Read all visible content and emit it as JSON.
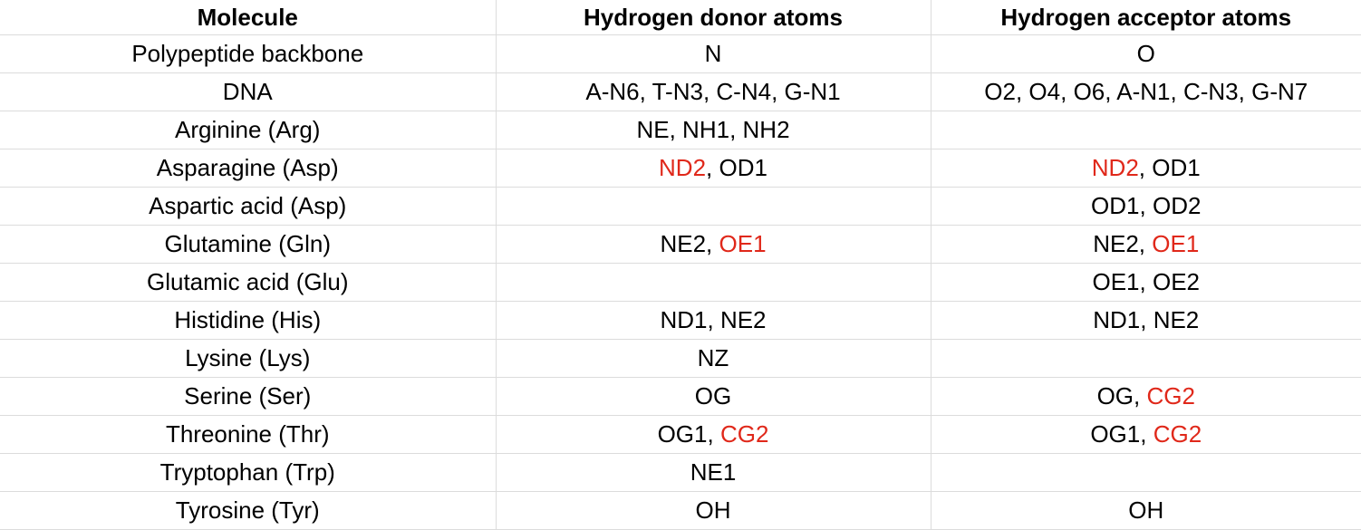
{
  "table": {
    "headers": [
      "Molecule",
      "Hydrogen donor atoms",
      "Hydrogen acceptor atoms"
    ],
    "highlight_color": "#e0281a",
    "rows": [
      {
        "molecule": "Polypeptide backbone",
        "donors": [
          {
            "text": "N",
            "hl": false
          }
        ],
        "acceptors": [
          {
            "text": "O",
            "hl": false
          }
        ]
      },
      {
        "molecule": "DNA",
        "donors": [
          {
            "text": "A-N6",
            "hl": false
          },
          {
            "text": "T-N3",
            "hl": false
          },
          {
            "text": "C-N4",
            "hl": false
          },
          {
            "text": "G-N1",
            "hl": false
          }
        ],
        "acceptors": [
          {
            "text": "O2",
            "hl": false
          },
          {
            "text": "O4",
            "hl": false
          },
          {
            "text": "O6",
            "hl": false
          },
          {
            "text": "A-N1",
            "hl": false
          },
          {
            "text": "C-N3",
            "hl": false
          },
          {
            "text": "G-N7",
            "hl": false
          }
        ]
      },
      {
        "molecule": "Arginine (Arg)",
        "donors": [
          {
            "text": "NE",
            "hl": false
          },
          {
            "text": "NH1",
            "hl": false
          },
          {
            "text": "NH2",
            "hl": false
          }
        ],
        "acceptors": []
      },
      {
        "molecule": "Asparagine (Asp)",
        "donors": [
          {
            "text": "ND2",
            "hl": true
          },
          {
            "text": "OD1",
            "hl": false
          }
        ],
        "acceptors": [
          {
            "text": "ND2",
            "hl": true
          },
          {
            "text": "OD1",
            "hl": false
          }
        ]
      },
      {
        "molecule": "Aspartic acid (Asp)",
        "donors": [],
        "acceptors": [
          {
            "text": "OD1",
            "hl": false
          },
          {
            "text": "OD2",
            "hl": false
          }
        ]
      },
      {
        "molecule": "Glutamine (Gln)",
        "donors": [
          {
            "text": "NE2",
            "hl": false
          },
          {
            "text": "OE1",
            "hl": true
          }
        ],
        "acceptors": [
          {
            "text": "NE2",
            "hl": false
          },
          {
            "text": "OE1",
            "hl": true
          }
        ]
      },
      {
        "molecule": "Glutamic acid (Glu)",
        "donors": [],
        "acceptors": [
          {
            "text": "OE1",
            "hl": false
          },
          {
            "text": "OE2",
            "hl": false
          }
        ]
      },
      {
        "molecule": "Histidine (His)",
        "donors": [
          {
            "text": "ND1",
            "hl": false
          },
          {
            "text": "NE2",
            "hl": false
          }
        ],
        "acceptors": [
          {
            "text": "ND1",
            "hl": false
          },
          {
            "text": "NE2",
            "hl": false
          }
        ]
      },
      {
        "molecule": "Lysine (Lys)",
        "donors": [
          {
            "text": "NZ",
            "hl": false
          }
        ],
        "acceptors": []
      },
      {
        "molecule": "Serine (Ser)",
        "donors": [
          {
            "text": "OG",
            "hl": false
          }
        ],
        "acceptors": [
          {
            "text": "OG",
            "hl": false
          },
          {
            "text": "CG2",
            "hl": true
          }
        ]
      },
      {
        "molecule": "Threonine (Thr)",
        "donors": [
          {
            "text": "OG1",
            "hl": false
          },
          {
            "text": "CG2",
            "hl": true
          }
        ],
        "acceptors": [
          {
            "text": "OG1",
            "hl": false
          },
          {
            "text": "CG2",
            "hl": true
          }
        ]
      },
      {
        "molecule": "Tryptophan (Trp)",
        "donors": [
          {
            "text": "NE1",
            "hl": false
          }
        ],
        "acceptors": []
      },
      {
        "molecule": "Tyrosine (Tyr)",
        "donors": [
          {
            "text": "OH",
            "hl": false
          }
        ],
        "acceptors": [
          {
            "text": "OH",
            "hl": false
          }
        ]
      }
    ]
  }
}
